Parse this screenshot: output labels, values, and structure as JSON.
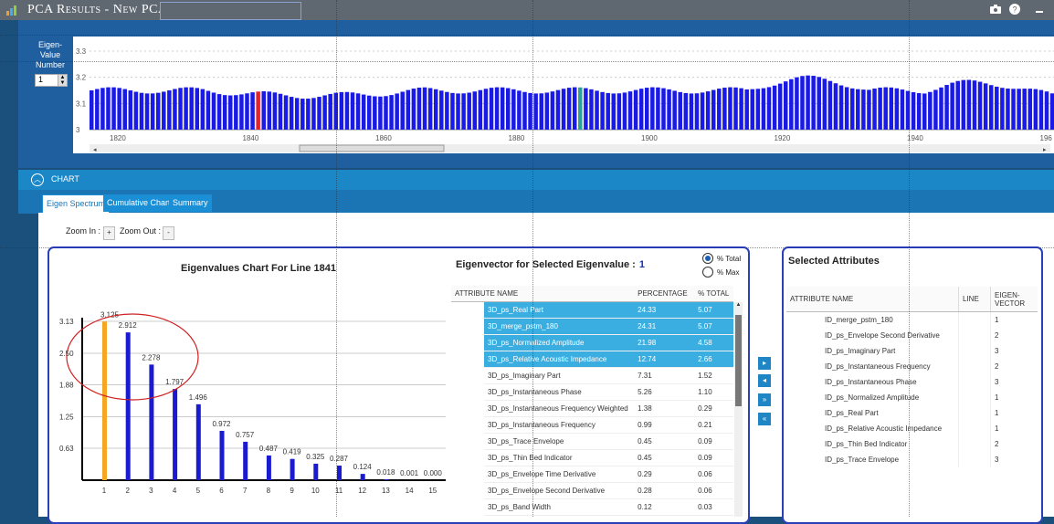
{
  "window": {
    "title": "PCA Results - New PCA",
    "title_input_value": ""
  },
  "title_icons": [
    "camera-icon",
    "help-icon",
    "minimize-icon"
  ],
  "top": {
    "ev_label": [
      "Eigen-",
      "Value",
      "Number"
    ],
    "ev_number": "1",
    "yticks": [
      "3.3",
      "3.2",
      "3.1",
      "3"
    ],
    "xticks": [
      "1820",
      "1840",
      "1860",
      "1880",
      "1900",
      "1920",
      "1940",
      "196"
    ],
    "bar_colors": {
      "default": "#1a1ae6",
      "selected": "#e0222a",
      "marker": "#2aa19a"
    }
  },
  "section": {
    "label": "CHART"
  },
  "tabs": [
    "Eigen Spectrum",
    "Cumulative Chart",
    "Summary"
  ],
  "zoom": {
    "in_label": "Zoom In :",
    "in_btn": "+",
    "out_label": "Zoom Out :",
    "out_btn": "-"
  },
  "eigen_chart": {
    "title": "Eigenvalues Chart For Line  1841",
    "yticks": [
      "3.13",
      "2.50",
      "1.88",
      "1.25",
      "0.63"
    ]
  },
  "chart_data": {
    "type": "bar",
    "title": "Eigenvalues Chart For Line  1841",
    "categories": [
      "1",
      "2",
      "3",
      "4",
      "5",
      "6",
      "7",
      "8",
      "9",
      "10",
      "11",
      "12",
      "13",
      "14",
      "15"
    ],
    "values": [
      3.125,
      2.912,
      2.278,
      1.797,
      1.496,
      0.972,
      0.757,
      0.487,
      0.419,
      0.325,
      0.287,
      0.124,
      0.018,
      0.001,
      0.0
    ],
    "value_labels": [
      "3.125",
      "2.912",
      "2.278",
      "1.797",
      "1.496",
      "0.972",
      "0.757",
      "0.487",
      "0.419",
      "0.325",
      "0.287",
      "0.124",
      "0.018",
      "0.001",
      "0.000"
    ],
    "ylim": [
      0,
      3.13
    ],
    "ytick_values": [
      3.13,
      2.5,
      1.88,
      1.25,
      0.63
    ],
    "colors": {
      "first": "#f5a623",
      "rest": "#1a1ad0"
    },
    "grid": true,
    "annotation": "red ellipse around bars 1-4"
  },
  "eigenvector": {
    "title": "Eigenvector for Selected Eigenvalue :",
    "value": "1",
    "radio_total": "% Total",
    "radio_max": "% Max",
    "headers": [
      "ATTRIBUTE NAME",
      "PERCENTAGE",
      "% TOTAL"
    ],
    "rows": [
      {
        "name": "3D_ps_Real Part",
        "pct": "24.33",
        "tot": "5.07",
        "sel": true
      },
      {
        "name": "3D_merge_pstm_180",
        "pct": "24.31",
        "tot": "5.07",
        "sel": true
      },
      {
        "name": "3D_ps_Normalized Amplitude",
        "pct": "21.98",
        "tot": "4.58",
        "sel": true
      },
      {
        "name": "3D_ps_Relative Acoustic Impedance",
        "pct": "12.74",
        "tot": "2.66",
        "sel": true
      },
      {
        "name": "3D_ps_Imaginary Part",
        "pct": "7.31",
        "tot": "1.52",
        "sel": false
      },
      {
        "name": "3D_ps_Instantaneous Phase",
        "pct": "5.26",
        "tot": "1.10",
        "sel": false
      },
      {
        "name": "3D_ps_Instantaneous Frequency Weighted",
        "pct": "1.38",
        "tot": "0.29",
        "sel": false
      },
      {
        "name": "3D_ps_Instantaneous Frequency",
        "pct": "0.99",
        "tot": "0.21",
        "sel": false
      },
      {
        "name": "3D_ps_Trace Envelope",
        "pct": "0.45",
        "tot": "0.09",
        "sel": false
      },
      {
        "name": "3D_ps_Thin Bed Indicator",
        "pct": "0.45",
        "tot": "0.09",
        "sel": false
      },
      {
        "name": "3D_ps_Envelope Time Derivative",
        "pct": "0.29",
        "tot": "0.06",
        "sel": false
      },
      {
        "name": "3D_ps_Envelope Second Derivative",
        "pct": "0.28",
        "tot": "0.06",
        "sel": false
      },
      {
        "name": "3D_ps_Band Width",
        "pct": "0.12",
        "tot": "0.03",
        "sel": false
      }
    ]
  },
  "selected": {
    "title": "Selected Attributes",
    "headers": [
      "ATTRIBUTE NAME",
      "LINE",
      "EIGEN-VECTOR"
    ],
    "rows": [
      {
        "name": "ID_merge_pstm_180",
        "line": "",
        "ev": "1"
      },
      {
        "name": "ID_ps_Envelope Second Derivative",
        "line": "",
        "ev": "2"
      },
      {
        "name": "ID_ps_Imaginary Part",
        "line": "",
        "ev": "3"
      },
      {
        "name": "ID_ps_Instantaneous Frequency",
        "line": "",
        "ev": "2"
      },
      {
        "name": "ID_ps_Instantaneous Phase",
        "line": "",
        "ev": "3"
      },
      {
        "name": "ID_ps_Normalized Amplitude",
        "line": "",
        "ev": "1"
      },
      {
        "name": "ID_ps_Real Part",
        "line": "",
        "ev": "1"
      },
      {
        "name": "ID_ps_Relative Acoustic Impedance",
        "line": "",
        "ev": "1"
      },
      {
        "name": "ID_ps_Thin Bed Indicator",
        "line": "",
        "ev": "2"
      },
      {
        "name": "ID_ps_Trace Envelope",
        "line": "",
        "ev": "3"
      }
    ]
  },
  "move_buttons": [
    "move-right-icon",
    "move-left-icon",
    "move-all-right-icon",
    "move-all-left-icon"
  ]
}
